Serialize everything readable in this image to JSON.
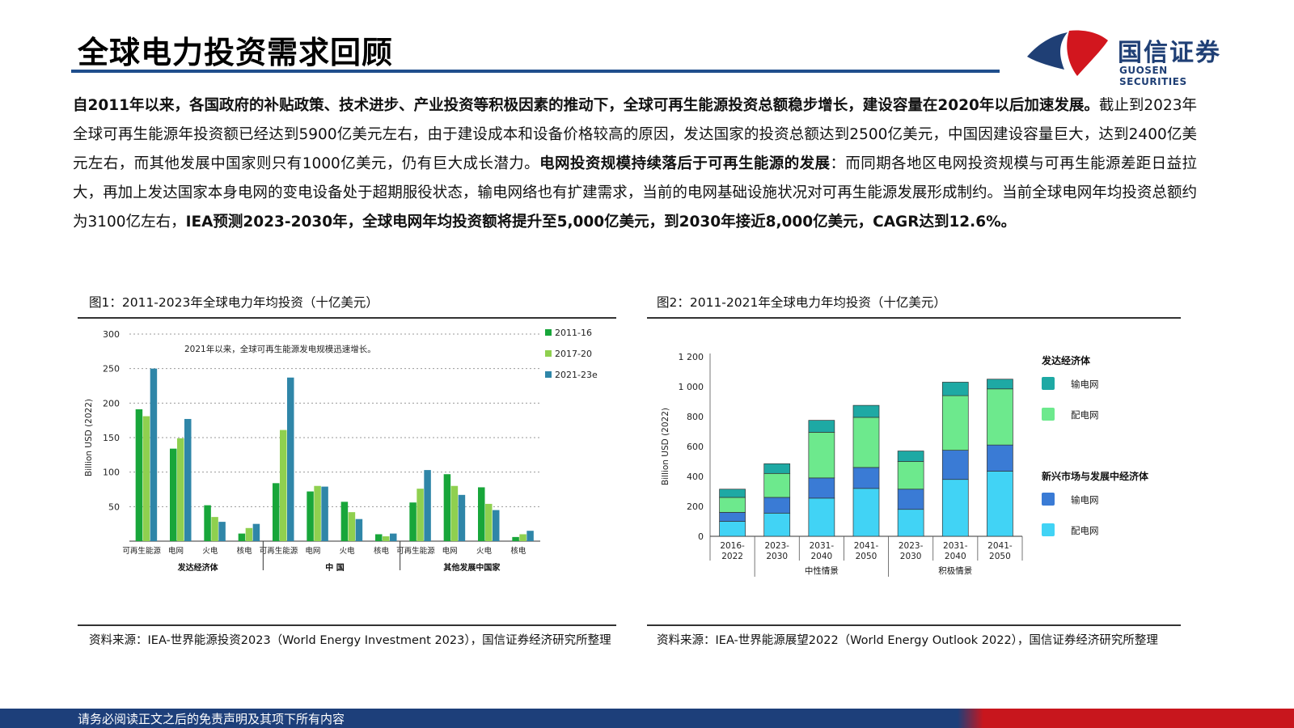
{
  "page": {
    "title": "全球电力投资需求回顾",
    "logo": {
      "cn": "国信证券",
      "en": "GUOSEN SECURITIES"
    },
    "footer": "请务必阅读正文之后的免责声明及其项下所有内容"
  },
  "body": {
    "s1_bold": "自2011年以来，各国政府的补贴政策、技术进步、产业投资等积极因素的推动下，全球可再生能源投资总额稳步增长，建设容量在2020年以后加速发展。",
    "s2": "截止到2023年全球可再生能源年投资额已经达到5900亿美元左右，由于建设成本和设备价格较高的原因，发达国家的投资总额达到2500亿美元，中国因建设容量巨大，达到2400亿美元左右，而其他发展中国家则只有1000亿美元，仍有巨大成长潜力。",
    "s3_bold": "电网投资规模持续落后于可再生能源的发展",
    "s4": "：而同期各地区电网投资规模与可再生能源差距日益拉大，再加上发达国家本身电网的变电设备处于超期服役状态，输电网络也有扩建需求，当前的电网基础设施状况对可再生能源发展形成制约。当前全球电网年均投资总额约为3100亿左右，",
    "s5_bold": "IEA预测2023-2030年，全球电网年均投资额将提升至5,000亿美元，到2030年接近8,000亿美元，CAGR达到12.6%。"
  },
  "fig1": {
    "title": "图1：2011-2023年全球电力年均投资（十亿美元）",
    "source": "资料来源：IEA-世界能源投资2023（World Energy Investment 2023），国信证券经济研究所整理",
    "annotation": "2021年以来，全球可再生能源发电规模迅速增长。",
    "colors": [
      "#18a63a",
      "#8fd04f",
      "#2f86a8"
    ]
  },
  "fig2": {
    "title": "图2：2011-2021年全球电力年均投资（十亿美元）",
    "source": "资料来源：IEA-世界能源展望2022（World Energy Outlook 2022），国信证券经济研究所整理",
    "colors": {
      "dev_trans": "#1ea9a4",
      "dev_dist": "#6de98d",
      "em_trans": "#3a7bd5",
      "em_dist": "#41d3f5"
    }
  },
  "chart_data": [
    {
      "type": "bar",
      "ylabel": "Billion USD (2022)",
      "ylim": [
        0,
        300
      ],
      "yticks": [
        50,
        100,
        150,
        200,
        250,
        300
      ],
      "legend_position": "top-right",
      "series_names": [
        "2011-16",
        "2017-20",
        "2021-23e"
      ],
      "groups": [
        {
          "name": "发达经济体",
          "categories": [
            {
              "label": "可再生能源",
              "values": [
                191,
                181,
                250
              ]
            },
            {
              "label": "电网",
              "values": [
                134,
                149,
                177
              ]
            },
            {
              "label": "火电",
              "values": [
                52,
                35,
                28
              ]
            },
            {
              "label": "核电",
              "values": [
                11,
                19,
                25
              ]
            }
          ]
        },
        {
          "name": "中 国",
          "categories": [
            {
              "label": "可再生能源",
              "values": [
                84,
                161,
                237
              ]
            },
            {
              "label": "电网",
              "values": [
                72,
                80,
                79
              ]
            },
            {
              "label": "火电",
              "values": [
                57,
                42,
                32
              ]
            },
            {
              "label": "核电",
              "values": [
                10,
                7,
                11
              ]
            }
          ]
        },
        {
          "name": "其他发展中国家",
          "categories": [
            {
              "label": "可再生能源",
              "values": [
                56,
                76,
                103
              ]
            },
            {
              "label": "电网",
              "values": [
                97,
                80,
                67
              ]
            },
            {
              "label": "火电",
              "values": [
                78,
                54,
                45
              ]
            },
            {
              "label": "核电",
              "values": [
                6,
                10,
                15
              ]
            }
          ]
        }
      ]
    },
    {
      "type": "bar",
      "stacked": true,
      "ylabel": "Billion USD (2022)",
      "ylim": [
        0,
        1200
      ],
      "yticks": [
        0,
        200,
        400,
        600,
        800,
        1000,
        1200
      ],
      "legend_position": "right",
      "categories": [
        "2016-2022",
        "2023-2030",
        "2031-2040",
        "2041-2050",
        "2023-2030",
        "2031-2040",
        "2041-2050"
      ],
      "category_groups": [
        {
          "name": "中性情景",
          "from": 1,
          "to": 3
        },
        {
          "name": "积极情景",
          "from": 4,
          "to": 6
        }
      ],
      "legend_groups": [
        {
          "name": "发达经济体",
          "items": [
            {
              "name": "输电网",
              "key": "dev_trans"
            },
            {
              "name": "配电网",
              "key": "dev_dist"
            }
          ]
        },
        {
          "name": "新兴市场与发展中经济体",
          "items": [
            {
              "name": "输电网",
              "key": "em_trans"
            },
            {
              "name": "配电网",
              "key": "em_dist"
            }
          ]
        }
      ],
      "series": [
        {
          "key": "em_dist",
          "values": [
            100,
            155,
            255,
            320,
            180,
            380,
            435
          ]
        },
        {
          "key": "em_trans",
          "values": [
            60,
            105,
            135,
            140,
            135,
            195,
            175
          ]
        },
        {
          "key": "dev_dist",
          "values": [
            100,
            160,
            305,
            335,
            185,
            365,
            375
          ]
        },
        {
          "key": "dev_trans",
          "values": [
            55,
            65,
            80,
            80,
            70,
            90,
            65
          ]
        }
      ]
    }
  ]
}
